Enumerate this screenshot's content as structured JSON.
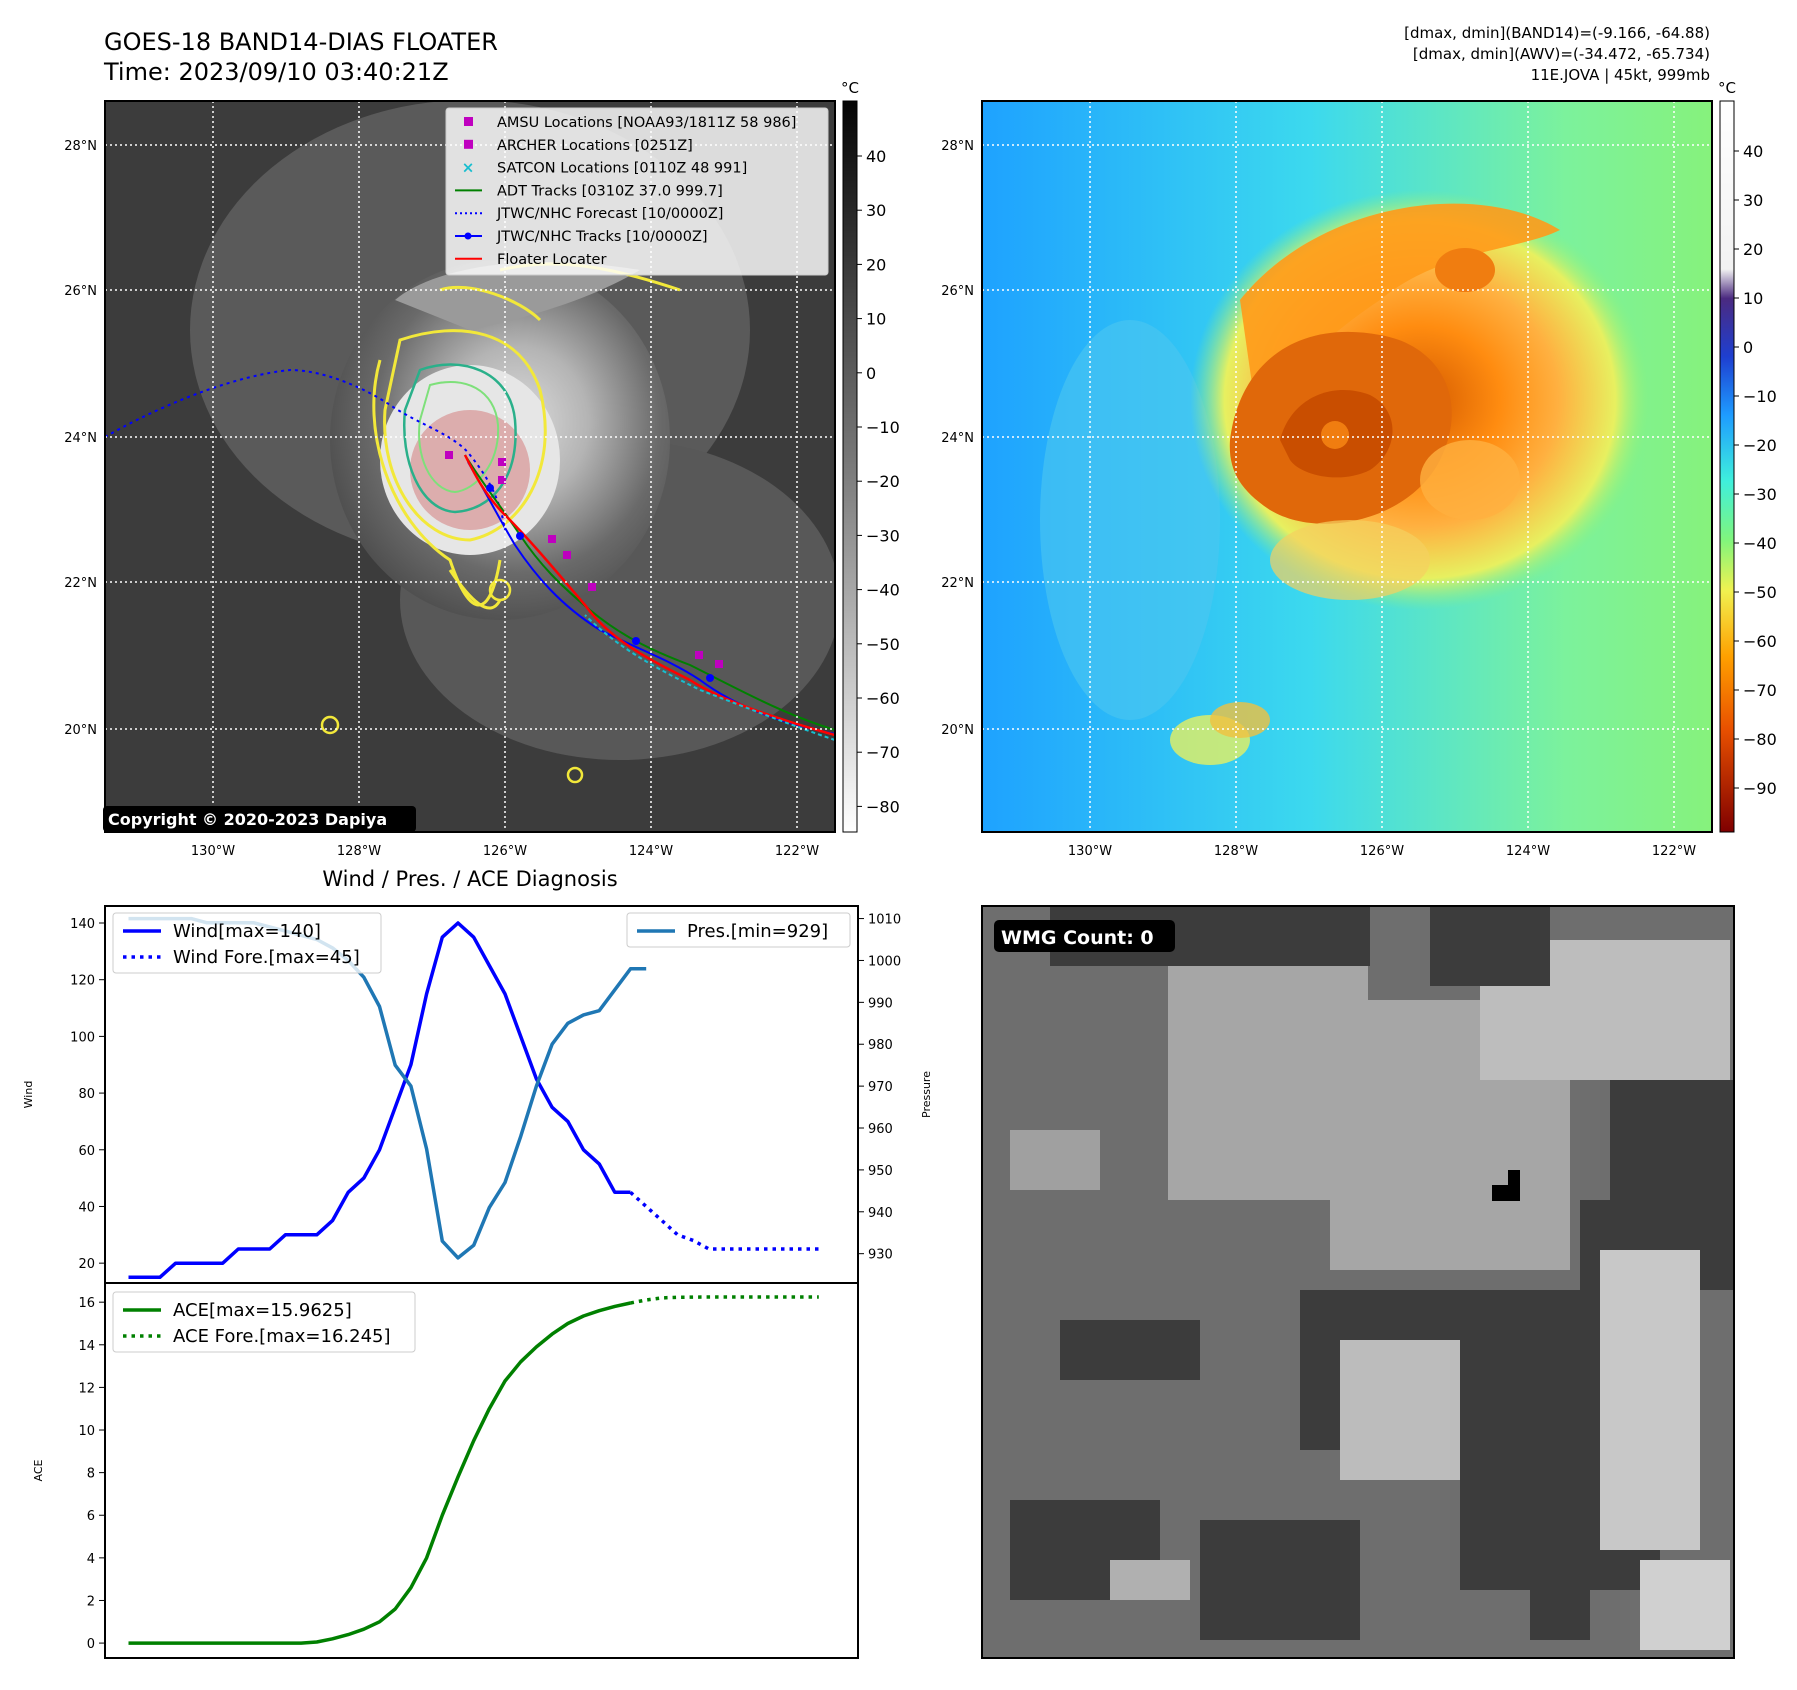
{
  "header": {
    "title": "GOES-18 BAND14-DIAS FLOATER",
    "time": "Time: 2023/09/10 03:40:21Z",
    "range_band14": "[dmax, dmin](BAND14)=(-9.166, -64.88)",
    "range_awv": "[dmax, dmin](AWV)=(-34.472, -65.734)",
    "storm": "11E.JOVA | 45kt, 999mb"
  },
  "map_left": {
    "lat_labels": [
      "28°N",
      "26°N",
      "24°N",
      "22°N",
      "20°N"
    ],
    "lon_labels": [
      "130°W",
      "128°W",
      "126°W",
      "124°W",
      "122°W"
    ],
    "legend": [
      {
        "label": "AMSU Locations [NOAA93/1811Z 58 986]",
        "color": "#bf00bf",
        "kind": "square"
      },
      {
        "label": "ARCHER Locations [0251Z]",
        "color": "#bf00bf",
        "kind": "square"
      },
      {
        "label": "SATCON Locations [0110Z 48 991]",
        "color": "#17becf",
        "kind": "x"
      },
      {
        "label": "ADT Tracks [0310Z 37.0 999.7]",
        "color": "#008000",
        "kind": "line"
      },
      {
        "label": "JTWC/NHC Forecast [10/0000Z]",
        "color": "#0000ff",
        "kind": "dotted"
      },
      {
        "label": "JTWC/NHC Tracks [10/0000Z]",
        "color": "#0000ff",
        "kind": "line-dot"
      },
      {
        "label": "Floater Locater",
        "color": "#ff0000",
        "kind": "line"
      }
    ],
    "copyright": "Copyright © 2020-2023 Dapiya",
    "colorbar_unit": "°C",
    "colorbar_ticks": [
      "40",
      "30",
      "20",
      "10",
      "0",
      "−10",
      "−20",
      "−30",
      "−40",
      "−50",
      "−60",
      "−70",
      "−80"
    ]
  },
  "map_right": {
    "lat_labels": [
      "28°N",
      "26°N",
      "24°N",
      "22°N",
      "20°N"
    ],
    "lon_labels": [
      "130°W",
      "128°W",
      "126°W",
      "124°W",
      "122°W"
    ],
    "colorbar_unit": "°C",
    "colorbar_ticks": [
      "40",
      "30",
      "20",
      "10",
      "0",
      "−10",
      "−20",
      "−30",
      "−40",
      "−50",
      "−60",
      "−70",
      "−80",
      "−90"
    ]
  },
  "wmg": {
    "badge": "WMG Count: 0"
  },
  "chart_data": [
    {
      "type": "line",
      "title": "Wind / Pres. / ACE Diagnosis",
      "ylabel": "Wind",
      "ylabel_right": "Pressure",
      "ylim": [
        13,
        146
      ],
      "ylim_right": [
        923,
        1013
      ],
      "yticks": [
        20,
        40,
        60,
        80,
        100,
        120,
        140
      ],
      "yticks_right": [
        930,
        940,
        950,
        960,
        970,
        980,
        990,
        1000,
        1010
      ],
      "x_range": [
        -1.5,
        46.5
      ],
      "legend_left": [
        "Wind[max=140]",
        "Wind Fore.[max=45]"
      ],
      "legend_right": [
        "Pres.[min=929]"
      ],
      "series": [
        {
          "name": "Wind[max=140]",
          "color": "#0000ff",
          "style": "solid",
          "x": [
            0,
            1,
            2,
            3,
            4,
            5,
            6,
            7,
            8,
            9,
            10,
            11,
            12,
            13,
            14,
            15,
            16,
            17,
            18,
            19,
            20,
            21,
            22,
            23,
            24,
            25,
            26,
            27,
            28,
            29,
            30,
            31,
            32
          ],
          "values": [
            15,
            15,
            15,
            20,
            20,
            20,
            20,
            25,
            25,
            25,
            30,
            30,
            30,
            35,
            45,
            50,
            60,
            75,
            90,
            115,
            135,
            140,
            135,
            125,
            115,
            100,
            85,
            75,
            70,
            60,
            55,
            45,
            45
          ]
        },
        {
          "name": "Wind Fore.[max=45]",
          "color": "#0000ff",
          "style": "dotted",
          "x": [
            32,
            33,
            34,
            35,
            36,
            37,
            38,
            39,
            40,
            41,
            42,
            43,
            44
          ],
          "values": [
            45,
            40,
            35,
            30,
            28,
            25,
            25,
            25,
            25,
            25,
            25,
            25,
            25
          ]
        },
        {
          "name": "Pres.[min=929]",
          "color": "#1f77b4",
          "style": "solid",
          "axis": "right",
          "x": [
            0,
            1,
            2,
            3,
            4,
            5,
            6,
            7,
            8,
            9,
            10,
            11,
            12,
            13,
            14,
            15,
            16,
            17,
            18,
            19,
            20,
            21,
            22,
            23,
            24,
            25,
            26,
            27,
            28,
            29,
            30,
            31,
            32,
            33
          ],
          "values": [
            1010,
            1010,
            1010,
            1010,
            1010,
            1009,
            1009,
            1009,
            1009,
            1008,
            1007,
            1006,
            1005,
            1003,
            1000,
            996,
            989,
            975,
            970,
            955,
            933,
            929,
            932,
            941,
            947,
            958,
            970,
            980,
            985,
            987,
            988,
            993,
            998,
            998
          ]
        }
      ]
    },
    {
      "type": "line",
      "ylabel": "ACE",
      "ylim": [
        -0.7,
        16.9
      ],
      "yticks": [
        0,
        2,
        4,
        6,
        8,
        10,
        12,
        14,
        16
      ],
      "x_range": [
        -1.5,
        46.5
      ],
      "legend": [
        "ACE[max=15.9625]",
        "ACE Fore.[max=16.245]"
      ],
      "series": [
        {
          "name": "ACE[max=15.9625]",
          "color": "#008000",
          "style": "solid",
          "x": [
            0,
            1,
            2,
            3,
            4,
            5,
            6,
            7,
            8,
            9,
            10,
            11,
            12,
            13,
            14,
            15,
            16,
            17,
            18,
            19,
            20,
            21,
            22,
            23,
            24,
            25,
            26,
            27,
            28,
            29,
            30,
            31,
            32
          ],
          "values": [
            0,
            0,
            0,
            0,
            0,
            0,
            0,
            0,
            0,
            0,
            0,
            0,
            0.05,
            0.2,
            0.4,
            0.65,
            1.0,
            1.6,
            2.6,
            4.0,
            6.0,
            7.8,
            9.5,
            11.0,
            12.3,
            13.2,
            13.9,
            14.5,
            15.0,
            15.35,
            15.6,
            15.8,
            15.96
          ]
        },
        {
          "name": "ACE Fore.[max=16.245]",
          "color": "#008000",
          "style": "dotted",
          "x": [
            32,
            33,
            34,
            35,
            36,
            37,
            38,
            39,
            40,
            41,
            42,
            43,
            44
          ],
          "values": [
            15.96,
            16.1,
            16.2,
            16.23,
            16.24,
            16.245,
            16.245,
            16.245,
            16.245,
            16.245,
            16.245,
            16.245,
            16.245
          ]
        }
      ]
    }
  ]
}
